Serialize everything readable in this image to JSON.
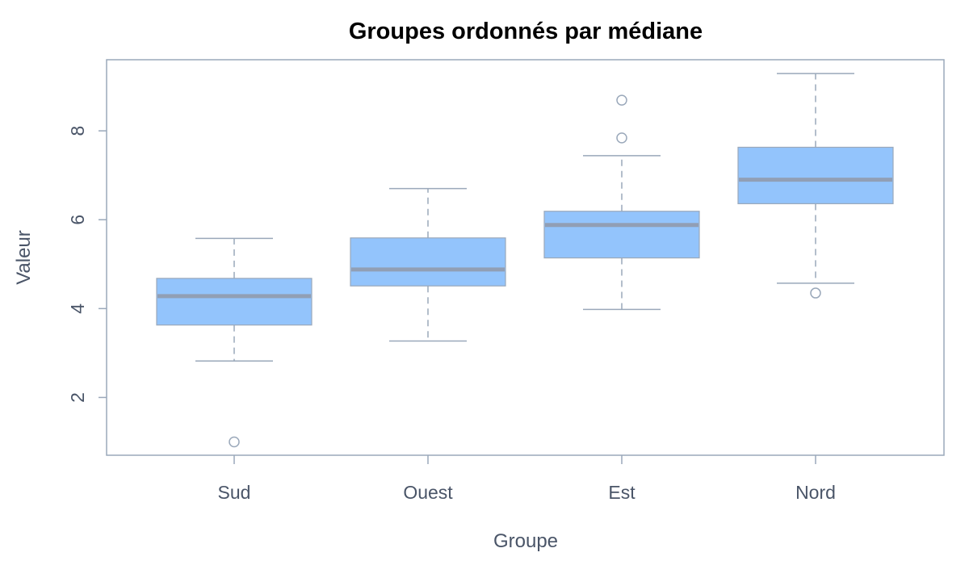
{
  "chart_data": {
    "type": "boxplot",
    "title": "Groupes ordonnés par médiane",
    "xlabel": "Groupe",
    "ylabel": "Valeur",
    "ylim": [
      0.7,
      9.6
    ],
    "yticks": [
      2,
      4,
      6,
      8
    ],
    "categories": [
      "Sud",
      "Ouest",
      "Est",
      "Nord"
    ],
    "boxes": [
      {
        "category": "Sud",
        "whisker_low": 2.82,
        "q1": 3.63,
        "median": 4.28,
        "q3": 4.68,
        "whisker_high": 5.58,
        "outliers": [
          1.0
        ]
      },
      {
        "category": "Ouest",
        "whisker_low": 3.27,
        "q1": 4.51,
        "median": 4.88,
        "q3": 5.59,
        "whisker_high": 6.7,
        "outliers": []
      },
      {
        "category": "Est",
        "whisker_low": 3.98,
        "q1": 5.14,
        "median": 5.88,
        "q3": 6.19,
        "whisker_high": 7.44,
        "outliers": [
          7.84,
          8.69
        ]
      },
      {
        "category": "Nord",
        "whisker_low": 4.57,
        "q1": 6.36,
        "median": 6.9,
        "q3": 7.63,
        "whisker_high": 9.29,
        "outliers": [
          4.35
        ]
      }
    ],
    "colors": {
      "box_fill": "#93c4fc",
      "median": "#919fb5",
      "lines": "#9aa8ba",
      "text": "#4a5568"
    },
    "grid": false,
    "legend": "none"
  }
}
